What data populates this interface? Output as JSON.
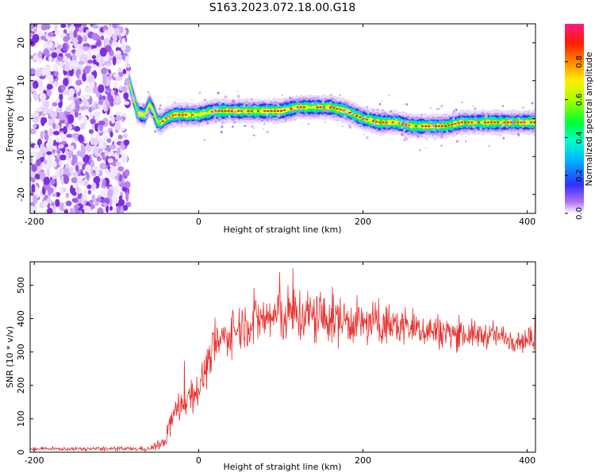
{
  "title": "S163.2023.072.18.00.G18",
  "colors": {
    "snr_line": "#e8302c",
    "background_scatter": "#9a55e6",
    "colormap": [
      "#ffffff",
      "#a020f0",
      "#2020ff",
      "#00e5ff",
      "#00ff44",
      "#ccff00",
      "#ffd000",
      "#ff5500",
      "#ff0040",
      "#ff1f8a"
    ]
  },
  "chart_data": [
    {
      "type": "heatmap",
      "xlabel": "Height of straight line (km)",
      "ylabel": "Frequency (Hz)",
      "xlim": [
        -205,
        410
      ],
      "ylim": [
        -25,
        25
      ],
      "xticks": [
        -200,
        0,
        200,
        400
      ],
      "yticks": [
        -20,
        -10,
        0,
        10,
        20
      ],
      "colorbar": {
        "label": "Normalized spectral amplitude",
        "range": [
          0,
          1
        ],
        "ticks": [
          "0.0",
          "0.2",
          "0.4",
          "0.6",
          "0.8"
        ]
      },
      "noise_region_x": [
        -205,
        -85
      ],
      "ridge": {
        "x": [
          -85,
          -80,
          -75,
          -70,
          -65,
          -60,
          -55,
          -50,
          -45,
          -40,
          -30,
          -20,
          -10,
          0,
          20,
          40,
          60,
          80,
          100,
          120,
          140,
          160,
          180,
          200,
          220,
          240,
          260,
          280,
          300,
          320,
          340,
          360,
          380,
          400,
          410
        ],
        "freq": [
          10,
          6,
          2,
          1,
          1,
          4,
          2,
          -1,
          -1,
          0,
          1,
          1,
          1,
          1,
          2,
          2,
          2,
          2,
          2,
          3,
          3,
          3,
          2,
          0,
          -1,
          -1,
          -2,
          -2,
          -2,
          -1,
          -1,
          -1,
          -1,
          -1,
          -1
        ],
        "peak_amplitude": 0.95
      }
    },
    {
      "type": "line",
      "xlabel": "Height of straight line (km)",
      "ylabel": "SNR (10 * v/v)",
      "xlim": [
        -205,
        410
      ],
      "ylim": [
        0,
        570
      ],
      "xticks": [
        -200,
        0,
        200,
        400
      ],
      "yticks": [
        0,
        100,
        200,
        300,
        400,
        500
      ],
      "series": [
        {
          "envelope_x": [
            -205,
            -60,
            -40,
            -35,
            -20,
            0,
            20,
            40,
            60,
            80,
            100,
            120,
            140,
            160,
            180,
            200,
            220,
            240,
            260,
            280,
            300,
            320,
            340,
            360,
            380,
            400,
            410
          ],
          "envelope_mean": [
            10,
            10,
            30,
            90,
            150,
            190,
            320,
            360,
            390,
            400,
            410,
            410,
            405,
            400,
            395,
            385,
            385,
            380,
            375,
            365,
            360,
            355,
            350,
            350,
            340,
            335,
            335
          ],
          "envelope_spread": [
            5,
            8,
            20,
            50,
            60,
            60,
            70,
            70,
            80,
            90,
            100,
            100,
            100,
            90,
            80,
            70,
            70,
            70,
            60,
            60,
            55,
            50,
            45,
            40,
            40,
            40,
            40
          ]
        }
      ]
    }
  ]
}
